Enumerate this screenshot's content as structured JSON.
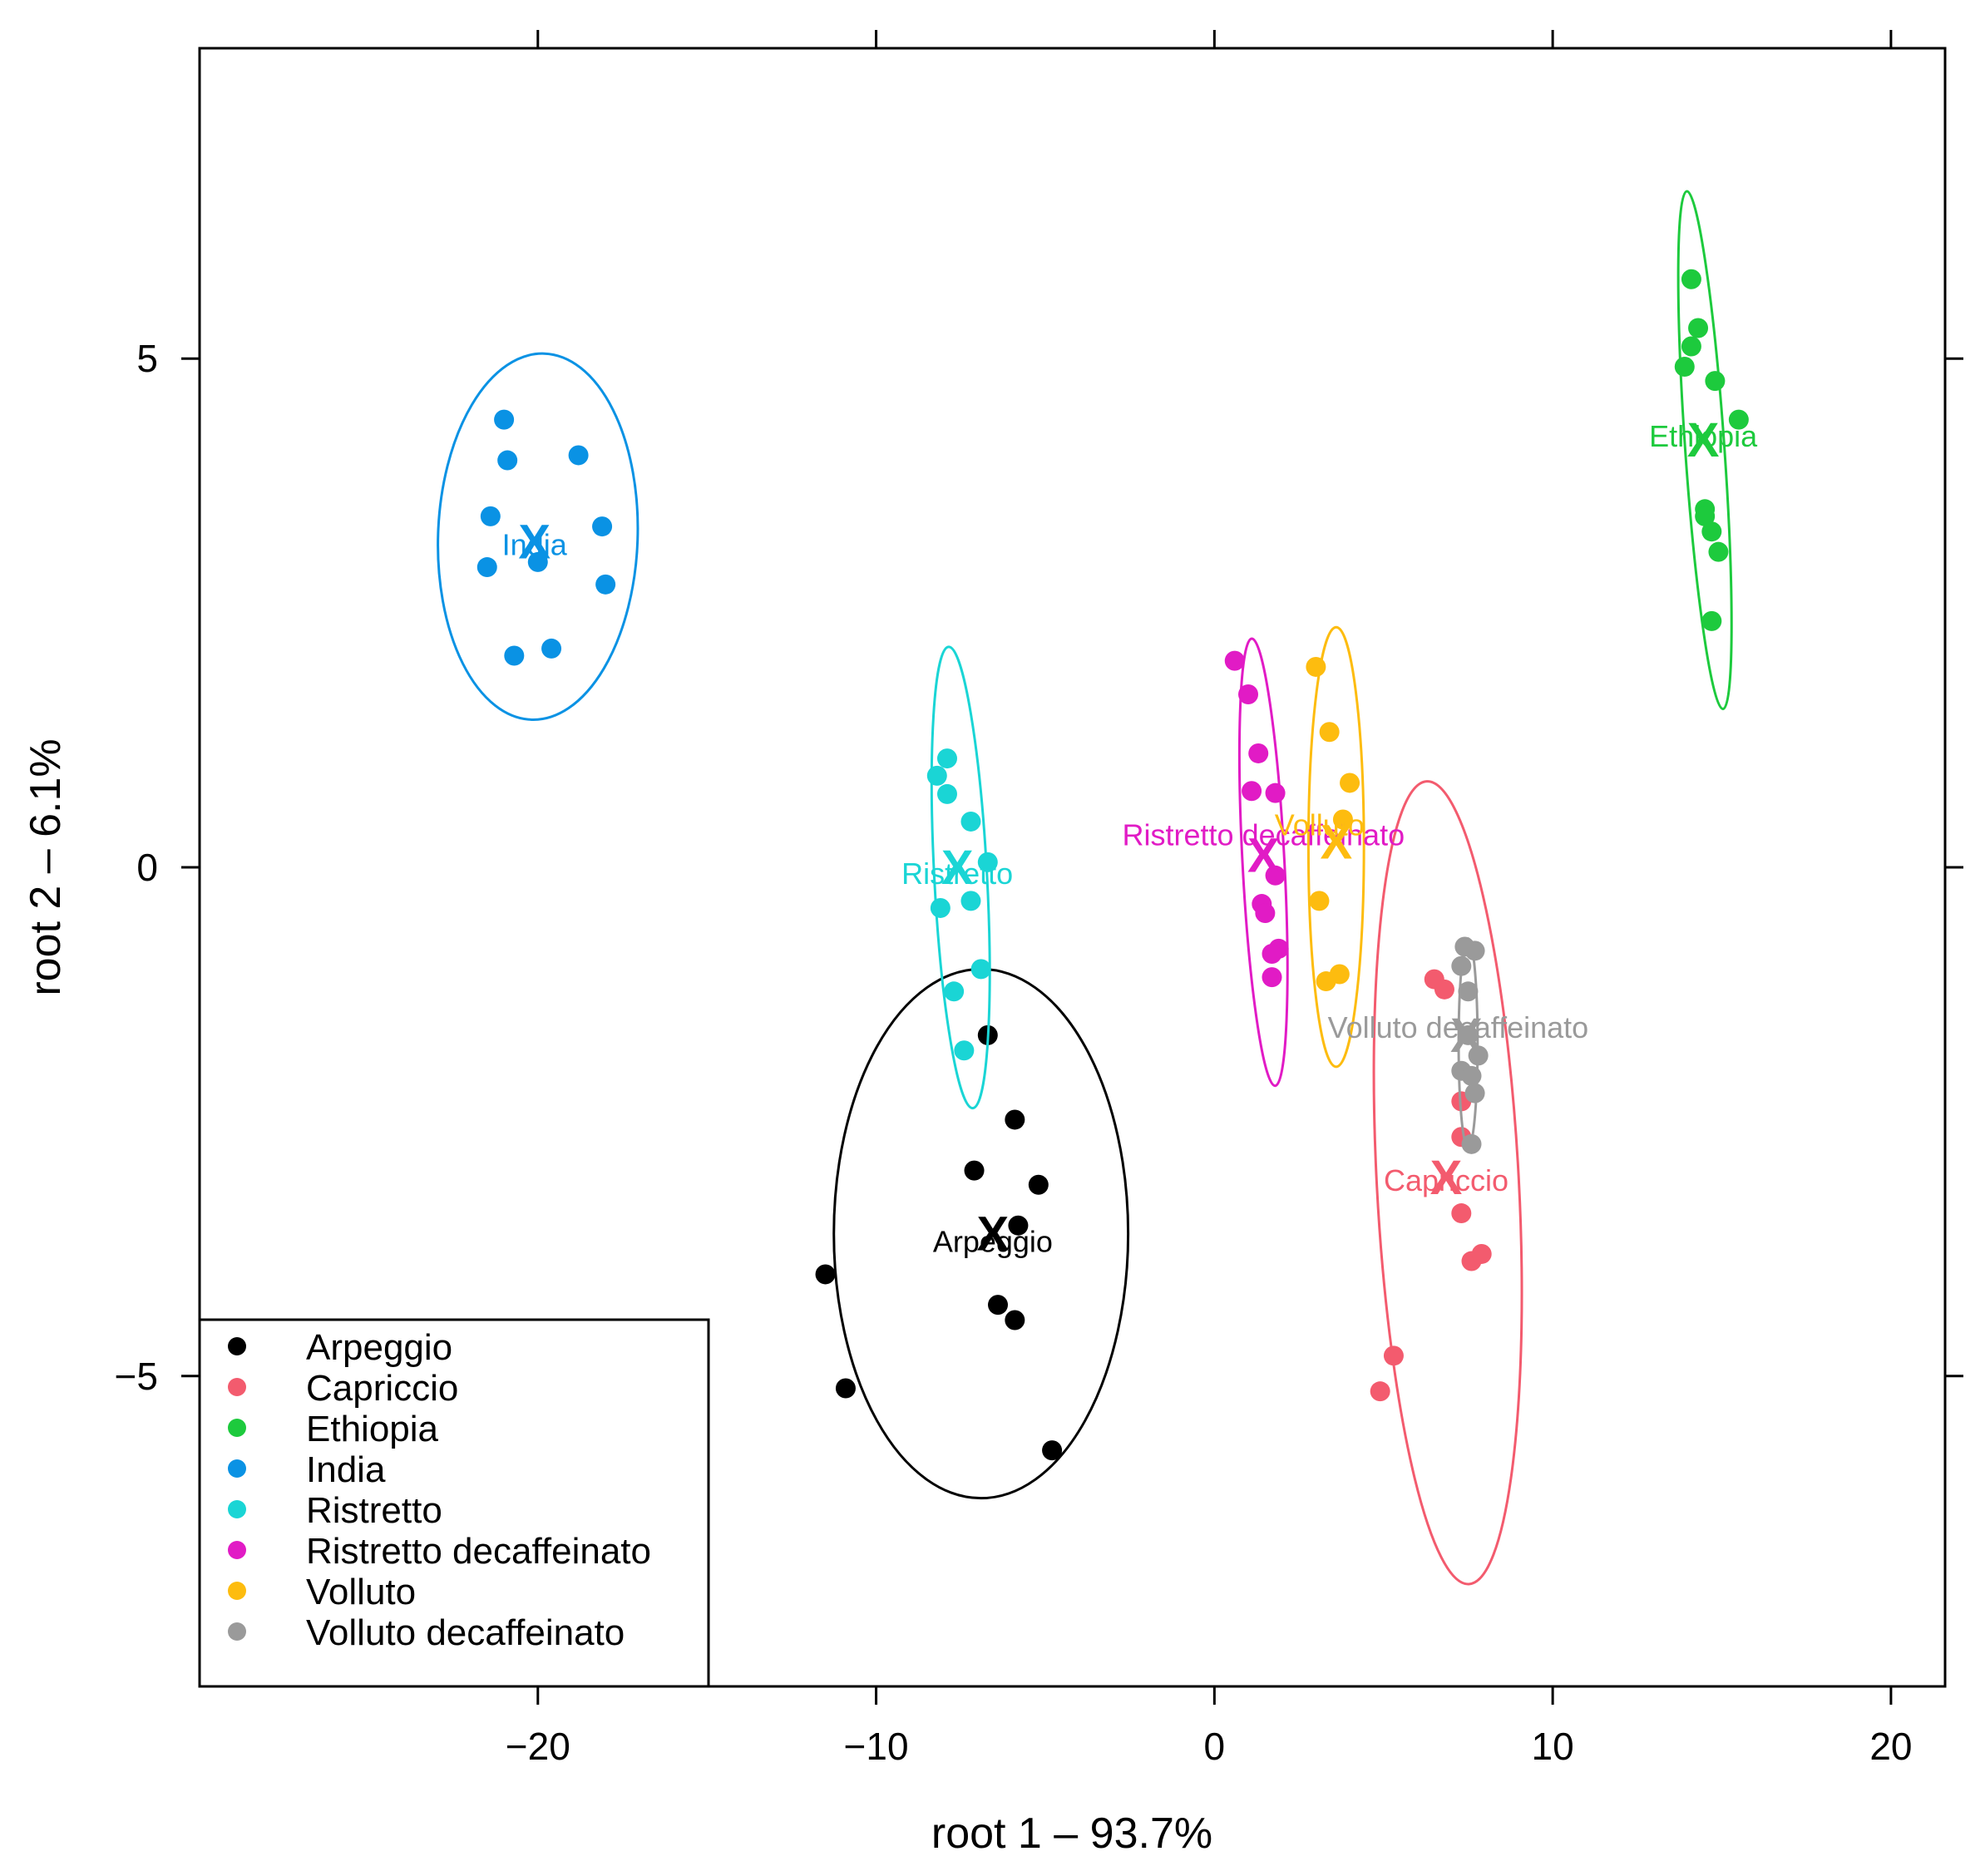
{
  "chart_data": {
    "type": "scatter",
    "title": "",
    "xlabel": "root 1 – 93.7%",
    "ylabel": "root 2 – 6.1%",
    "xlim": [
      -30,
      21.6
    ],
    "ylim": [
      -8.05,
      8.05
    ],
    "x_ticks": [
      -20,
      -10,
      0,
      10,
      20
    ],
    "y_ticks": [
      -5,
      0,
      5
    ],
    "x_tick_labels": [
      "−20",
      "−10",
      "0",
      "10",
      "20"
    ],
    "y_tick_labels": [
      "−5",
      "0",
      "5"
    ],
    "grid": false,
    "legend_position": "bottom-left",
    "centroid_marker": "X",
    "series": [
      {
        "name": "Arpeggio",
        "color": "#000000",
        "points": [
          [
            -6.7,
            -1.65
          ],
          [
            -5.9,
            -2.48
          ],
          [
            -7.1,
            -2.98
          ],
          [
            -5.2,
            -3.12
          ],
          [
            -5.8,
            -3.52
          ],
          [
            -6.4,
            -4.3
          ],
          [
            -5.9,
            -4.45
          ],
          [
            -11.5,
            -4.0
          ],
          [
            -10.9,
            -5.12
          ],
          [
            -4.8,
            -5.73
          ]
        ],
        "centroid": [
          -6.55,
          -3.6
        ],
        "ellipse": {
          "cx": -6.9,
          "cy": -3.6,
          "rx": 4.35,
          "ry": 2.6,
          "angle": 0
        }
      },
      {
        "name": "Capriccio",
        "color": "#f35b6e",
        "points": [
          [
            6.5,
            -1.1
          ],
          [
            6.8,
            -1.2
          ],
          [
            7.3,
            -2.3
          ],
          [
            7.3,
            -2.65
          ],
          [
            7.3,
            -3.4
          ],
          [
            7.6,
            -3.87
          ],
          [
            7.9,
            -3.8
          ],
          [
            5.3,
            -4.8
          ],
          [
            4.9,
            -5.15
          ]
        ],
        "centroid": [
          6.85,
          -3.05
        ],
        "ellipse": {
          "cx": 6.9,
          "cy": -3.1,
          "rx": 2.1,
          "ry": 3.95,
          "angle": -3
        }
      },
      {
        "name": "Ethiopia",
        "color": "#1dca3d",
        "points": [
          [
            14.1,
            5.78
          ],
          [
            14.3,
            5.3
          ],
          [
            14.1,
            5.12
          ],
          [
            13.9,
            4.92
          ],
          [
            14.8,
            4.78
          ],
          [
            15.5,
            4.4
          ],
          [
            14.5,
            3.52
          ],
          [
            14.5,
            3.45
          ],
          [
            14.7,
            3.3
          ],
          [
            14.9,
            3.1
          ],
          [
            14.7,
            2.42
          ]
        ],
        "centroid": [
          14.45,
          4.2
        ],
        "ellipse": {
          "cx": 14.5,
          "cy": 4.1,
          "rx": 0.58,
          "ry": 2.55,
          "angle": -4
        }
      },
      {
        "name": "India",
        "color": "#0a92e4",
        "points": [
          [
            -21.0,
            4.4
          ],
          [
            -20.9,
            4.0
          ],
          [
            -18.8,
            4.05
          ],
          [
            -21.4,
            3.45
          ],
          [
            -18.1,
            3.35
          ],
          [
            -21.5,
            2.95
          ],
          [
            -20.0,
            3.0
          ],
          [
            -18.0,
            2.78
          ],
          [
            -19.6,
            2.15
          ],
          [
            -20.7,
            2.08
          ]
        ],
        "centroid": [
          -20.1,
          3.2
        ],
        "ellipse": {
          "cx": -20.0,
          "cy": 3.25,
          "rx": 2.95,
          "ry": 1.8,
          "angle": 2
        }
      },
      {
        "name": "Ristretto",
        "color": "#1ad5d5",
        "points": [
          [
            -7.9,
            1.07
          ],
          [
            -8.2,
            0.9
          ],
          [
            -7.9,
            0.72
          ],
          [
            -7.2,
            0.45
          ],
          [
            -6.7,
            0.05
          ],
          [
            -7.2,
            -0.33
          ],
          [
            -8.1,
            -0.4
          ],
          [
            -6.9,
            -1.0
          ],
          [
            -7.7,
            -1.22
          ],
          [
            -7.4,
            -1.8
          ]
        ],
        "centroid": [
          -7.6,
          0.0
        ],
        "ellipse": {
          "cx": -7.5,
          "cy": -0.1,
          "rx": 0.78,
          "ry": 2.27,
          "angle": -3
        }
      },
      {
        "name": "Ristretto decaffeinato",
        "color": "#e11bc5",
        "points": [
          [
            0.6,
            2.03
          ],
          [
            1.0,
            1.7
          ],
          [
            1.3,
            1.12
          ],
          [
            1.1,
            0.75
          ],
          [
            1.8,
            0.73
          ],
          [
            1.8,
            -0.08
          ],
          [
            1.4,
            -0.36
          ],
          [
            1.5,
            -0.45
          ],
          [
            1.9,
            -0.8
          ],
          [
            1.7,
            -0.85
          ],
          [
            1.7,
            -1.08
          ]
        ],
        "centroid": [
          1.45,
          0.12
        ],
        "ellipse": {
          "cx": 1.45,
          "cy": 0.05,
          "rx": 0.62,
          "ry": 2.2,
          "angle": -3
        }
      },
      {
        "name": "Volluto",
        "color": "#fdbc0f",
        "points": [
          [
            3.0,
            1.97
          ],
          [
            3.4,
            1.33
          ],
          [
            4.0,
            0.83
          ],
          [
            3.8,
            0.47
          ],
          [
            3.1,
            -0.33
          ],
          [
            3.7,
            -1.05
          ],
          [
            3.3,
            -1.12
          ]
        ],
        "centroid": [
          3.6,
          0.25
        ],
        "ellipse": {
          "cx": 3.6,
          "cy": 0.2,
          "rx": 0.82,
          "ry": 2.16,
          "angle": 0
        }
      },
      {
        "name": "Volluto decaffeinato",
        "color": "#9a9a9a",
        "points": [
          [
            7.4,
            -0.78
          ],
          [
            7.7,
            -0.82
          ],
          [
            7.3,
            -0.97
          ],
          [
            7.5,
            -1.22
          ],
          [
            7.5,
            -1.65
          ],
          [
            7.8,
            -1.85
          ],
          [
            7.3,
            -2.0
          ],
          [
            7.6,
            -2.05
          ],
          [
            7.7,
            -2.22
          ],
          [
            7.6,
            -2.72
          ]
        ],
        "centroid": [
          7.45,
          -1.65
        ],
        "ellipse": {
          "cx": 7.5,
          "cy": -1.73,
          "rx": 0.28,
          "ry": 1.03,
          "angle": 0
        }
      }
    ]
  }
}
